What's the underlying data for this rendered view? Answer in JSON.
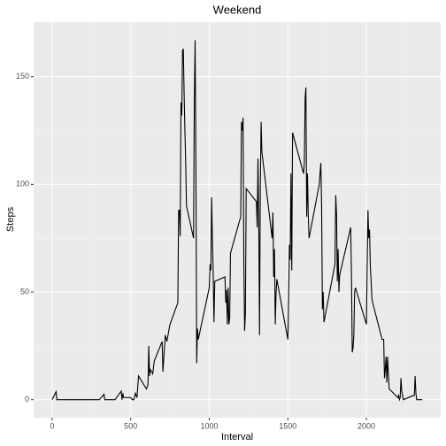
{
  "chart_data": {
    "type": "line",
    "title": "Weekend",
    "x_label": "Interval",
    "y_label": "Steps",
    "x": [
      0,
      25,
      30,
      100,
      115,
      120,
      145,
      150,
      155,
      200,
      230,
      300,
      330,
      335,
      400,
      420,
      440,
      445,
      450,
      455,
      500,
      510,
      520,
      530,
      540,
      550,
      600,
      610,
      615,
      620,
      625,
      640,
      650,
      700,
      705,
      720,
      730,
      750,
      800,
      805,
      810,
      815,
      820,
      825,
      830,
      835,
      840,
      845,
      850,
      855,
      900,
      905,
      910,
      915,
      920,
      925,
      930,
      1000,
      1005,
      1010,
      1015,
      1020,
      1025,
      1030,
      1035,
      1100,
      1105,
      1110,
      1115,
      1120,
      1125,
      1130,
      1135,
      1200,
      1205,
      1210,
      1215,
      1220,
      1225,
      1230,
      1235,
      1300,
      1305,
      1310,
      1315,
      1320,
      1325,
      1330,
      1335,
      1400,
      1405,
      1410,
      1415,
      1420,
      1425,
      1430,
      1500,
      1505,
      1510,
      1515,
      1520,
      1525,
      1530,
      1600,
      1605,
      1610,
      1615,
      1620,
      1625,
      1630,
      1635,
      1700,
      1705,
      1710,
      1715,
      1720,
      1725,
      1730,
      1800,
      1805,
      1810,
      1815,
      1820,
      1825,
      1830,
      1900,
      1905,
      1910,
      1915,
      1920,
      1925,
      1930,
      2000,
      2005,
      2010,
      2015,
      2020,
      2025,
      2030,
      2035,
      2040,
      2100,
      2105,
      2110,
      2115,
      2120,
      2125,
      2130,
      2135,
      2140,
      2145,
      2200,
      2205,
      2210,
      2215,
      2220,
      2225,
      2230,
      2235,
      2300,
      2305,
      2310,
      2315,
      2320,
      2355
    ],
    "series": [
      {
        "color": "#000000",
        "values": [
          0,
          3.7,
          0,
          0,
          0,
          0,
          0,
          0,
          0,
          0,
          0,
          0,
          2.5,
          0,
          0,
          2,
          4,
          0,
          3,
          1,
          1,
          0,
          0,
          3,
          1,
          11,
          5,
          7,
          25,
          11,
          14,
          12,
          18,
          27,
          13,
          30,
          27,
          35,
          45,
          88,
          88,
          76,
          138,
          132,
          162,
          163,
          142,
          125,
          110,
          90,
          75,
          140,
          167,
          110,
          17,
          33,
          28,
          52,
          63,
          60,
          94,
          75,
          58,
          36,
          55,
          57,
          45,
          51,
          35,
          52,
          35,
          38,
          68,
          85,
          129,
          125,
          131,
          63,
          32,
          40,
          98,
          92,
          80,
          112,
          82,
          30,
          100,
          129,
          115,
          75,
          87,
          57,
          70,
          35,
          49,
          56,
          28,
          47,
          72,
          65,
          105,
          60,
          124,
          105,
          110,
          140,
          145,
          85,
          105,
          86,
          75,
          100,
          105,
          110,
          90,
          42,
          50,
          36,
          63,
          95,
          86,
          55,
          70,
          50,
          58,
          80,
          58,
          22,
          24,
          30,
          50,
          52,
          35,
          64,
          88,
          75,
          79,
          62,
          55,
          47,
          45,
          28,
          28,
          28,
          10,
          14,
          20,
          8,
          20,
          12,
          5,
          1,
          2,
          0,
          1,
          10,
          4,
          2,
          0,
          2,
          2,
          11,
          3,
          0,
          0
        ]
      }
    ],
    "xlim": [
      -117.75,
      2472.75
    ],
    "ylim": [
      -8.35,
      175.35
    ],
    "xticks": [
      0,
      500,
      1000,
      1500,
      2000
    ],
    "yticks": [
      0,
      50,
      100,
      150
    ],
    "xminor": [
      250,
      750,
      1250,
      1750,
      2250
    ],
    "yminor": [
      25,
      75,
      125
    ],
    "grid": true
  }
}
